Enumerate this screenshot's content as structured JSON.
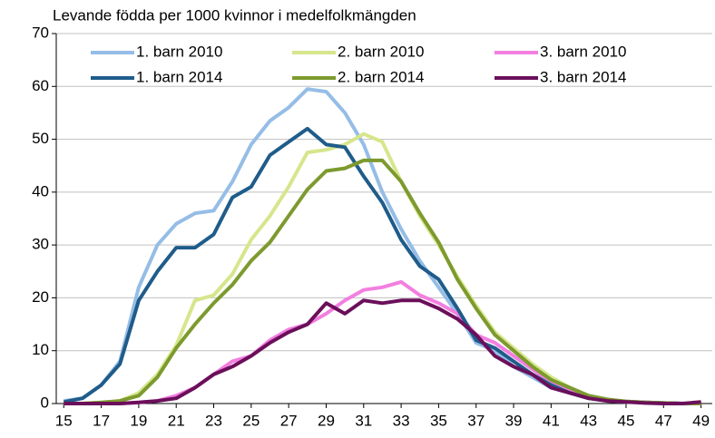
{
  "chart_data": {
    "type": "line",
    "y_label": "Levande födda per 1000 kvinnor i medelfolkmängden",
    "x": [
      15,
      16,
      17,
      18,
      19,
      20,
      21,
      22,
      23,
      24,
      25,
      26,
      27,
      28,
      29,
      30,
      31,
      32,
      33,
      34,
      35,
      36,
      37,
      38,
      39,
      40,
      41,
      42,
      43,
      44,
      45,
      46,
      47,
      48,
      49
    ],
    "xlim": [
      14.6,
      49.6
    ],
    "xticks": [
      15,
      17,
      19,
      21,
      23,
      25,
      27,
      29,
      31,
      33,
      35,
      37,
      39,
      41,
      43,
      45,
      47,
      49
    ],
    "ylim": [
      0,
      70
    ],
    "yticks": [
      0,
      10,
      20,
      30,
      40,
      50,
      60,
      70
    ],
    "grid": true,
    "series": [
      {
        "name": "1. barn 2010",
        "color": "#95bde6",
        "values": [
          0.5,
          1,
          3.5,
          8,
          22,
          30,
          34,
          36,
          36.5,
          42,
          49,
          53.5,
          56,
          59.5,
          59,
          55,
          49,
          40,
          33,
          27,
          22,
          17,
          11.5,
          10,
          7,
          5,
          3,
          2,
          1,
          0.5,
          0.3,
          0.2,
          0.1,
          0,
          0
        ]
      },
      {
        "name": "2. barn 2010",
        "color": "#d6e68c",
        "values": [
          0,
          0,
          0.2,
          0.5,
          2,
          5.5,
          11,
          19.5,
          20.5,
          24.5,
          31,
          35.5,
          41,
          47.5,
          48,
          49,
          51,
          49.5,
          42,
          35.5,
          30,
          24,
          18.5,
          13.5,
          10.5,
          7.5,
          5,
          3,
          1.5,
          0.7,
          0.4,
          0.2,
          0.1,
          0,
          0
        ]
      },
      {
        "name": "3. barn 2010",
        "color": "#f27fe0",
        "values": [
          0,
          0,
          0,
          0,
          0.2,
          0.5,
          1.5,
          3,
          5.5,
          8,
          9,
          12,
          14,
          15,
          17,
          19.5,
          21.5,
          22,
          23,
          20.5,
          19,
          17,
          13,
          11.5,
          9,
          6.5,
          4,
          2.5,
          1.5,
          0.7,
          0.3,
          0.2,
          0.1,
          0,
          0
        ]
      },
      {
        "name": "1. barn 2014",
        "color": "#1f5c8a",
        "values": [
          0.3,
          1,
          3.5,
          7.5,
          19.5,
          25,
          29.5,
          29.5,
          32,
          39,
          41,
          47,
          49.5,
          52,
          49,
          48.5,
          43,
          38,
          31,
          26,
          23.5,
          18,
          12,
          10.5,
          8,
          5.5,
          3.5,
          2,
          1,
          0.7,
          0.4,
          0.2,
          0.1,
          0,
          0
        ]
      },
      {
        "name": "2. barn 2014",
        "color": "#7d9a2e",
        "values": [
          0,
          0,
          0.2,
          0.5,
          1.5,
          5,
          10.5,
          15,
          19,
          22.5,
          27,
          30.5,
          35.5,
          40.5,
          44,
          44.5,
          46,
          46,
          42,
          36,
          30.5,
          23.5,
          18,
          13,
          10,
          7,
          4.5,
          3,
          1.5,
          0.8,
          0.4,
          0.2,
          0.1,
          0,
          0
        ]
      },
      {
        "name": "3. barn 2014",
        "color": "#6b0f5a",
        "values": [
          0,
          0,
          0,
          0,
          0.2,
          0.5,
          1,
          3,
          5.5,
          7,
          9,
          11.5,
          13.5,
          15,
          19,
          17,
          19.5,
          19,
          19.5,
          19.5,
          18,
          16,
          13,
          9,
          7,
          5.5,
          3,
          2,
          1,
          0.5,
          0.3,
          0.1,
          0,
          0,
          0.3
        ]
      }
    ]
  }
}
